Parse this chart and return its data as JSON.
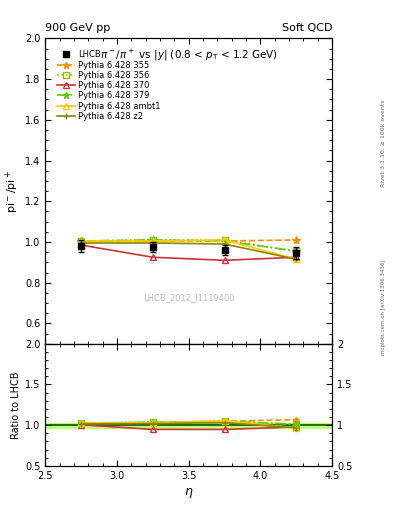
{
  "title_left": "900 GeV pp",
  "title_right": "Soft QCD",
  "subtitle": "π⁻/π⁺ vs |y| (0.8 < p_T < 1.2 GeV)",
  "ylabel_main": "pi⁻/pi⁺",
  "ylabel_ratio": "Ratio to LHCB",
  "xlabel": "η",
  "right_label_top": "Rivet 3.1.10, ≥ 100k events",
  "right_label_bot": "mcplots.cern.ch [arXiv:1306.3436]",
  "watermark": "LHCB_2012_I1119400",
  "xlim": [
    2.5,
    4.5
  ],
  "ylim_main": [
    0.5,
    2.0
  ],
  "ylim_ratio": [
    0.5,
    2.0
  ],
  "xticks": [
    2.5,
    3.0,
    3.5,
    4.0,
    4.5
  ],
  "yticks_main": [
    0.6,
    0.8,
    1.0,
    1.2,
    1.4,
    1.6,
    1.8,
    2.0
  ],
  "yticks_ratio": [
    0.5,
    1.0,
    1.5,
    2.0
  ],
  "eta_points": [
    2.75,
    3.25,
    3.75,
    4.25
  ],
  "lhcb_values": [
    0.98,
    0.975,
    0.96,
    0.945
  ],
  "lhcb_errors": [
    0.03,
    0.025,
    0.025,
    0.03
  ],
  "lhcb_color": "#000000",
  "series": [
    {
      "label": "Pythia 6.428 355",
      "values": [
        1.005,
        1.005,
        1.005,
        1.01
      ],
      "color": "#ff8c00",
      "marker": "*",
      "linestyle": "--",
      "markersize": 6
    },
    {
      "label": "Pythia 6.428 356",
      "values": [
        1.005,
        1.01,
        1.01,
        0.955
      ],
      "color": "#99bb00",
      "marker": "s",
      "linestyle": ":",
      "markersize": 5
    },
    {
      "label": "Pythia 6.428 370",
      "values": [
        0.985,
        0.925,
        0.91,
        0.925
      ],
      "color": "#cc3333",
      "marker": "^",
      "linestyle": "-",
      "markersize": 5
    },
    {
      "label": "Pythia 6.428 379",
      "values": [
        1.005,
        1.01,
        1.005,
        0.955
      ],
      "color": "#55cc00",
      "marker": "*",
      "linestyle": "-.",
      "markersize": 6
    },
    {
      "label": "Pythia 6.428 ambt1",
      "values": [
        1.005,
        1.005,
        1.01,
        0.915
      ],
      "color": "#ffcc00",
      "marker": "^",
      "linestyle": "-",
      "markersize": 5
    },
    {
      "label": "Pythia 6.428 z2",
      "values": [
        0.995,
        0.995,
        0.99,
        0.915
      ],
      "color": "#888800",
      "marker": "+",
      "linestyle": "-",
      "markersize": 5
    }
  ],
  "ratio_band_color": "#aaff55",
  "ratio_line_color": "#005500",
  "bg_color": "#ffffff"
}
